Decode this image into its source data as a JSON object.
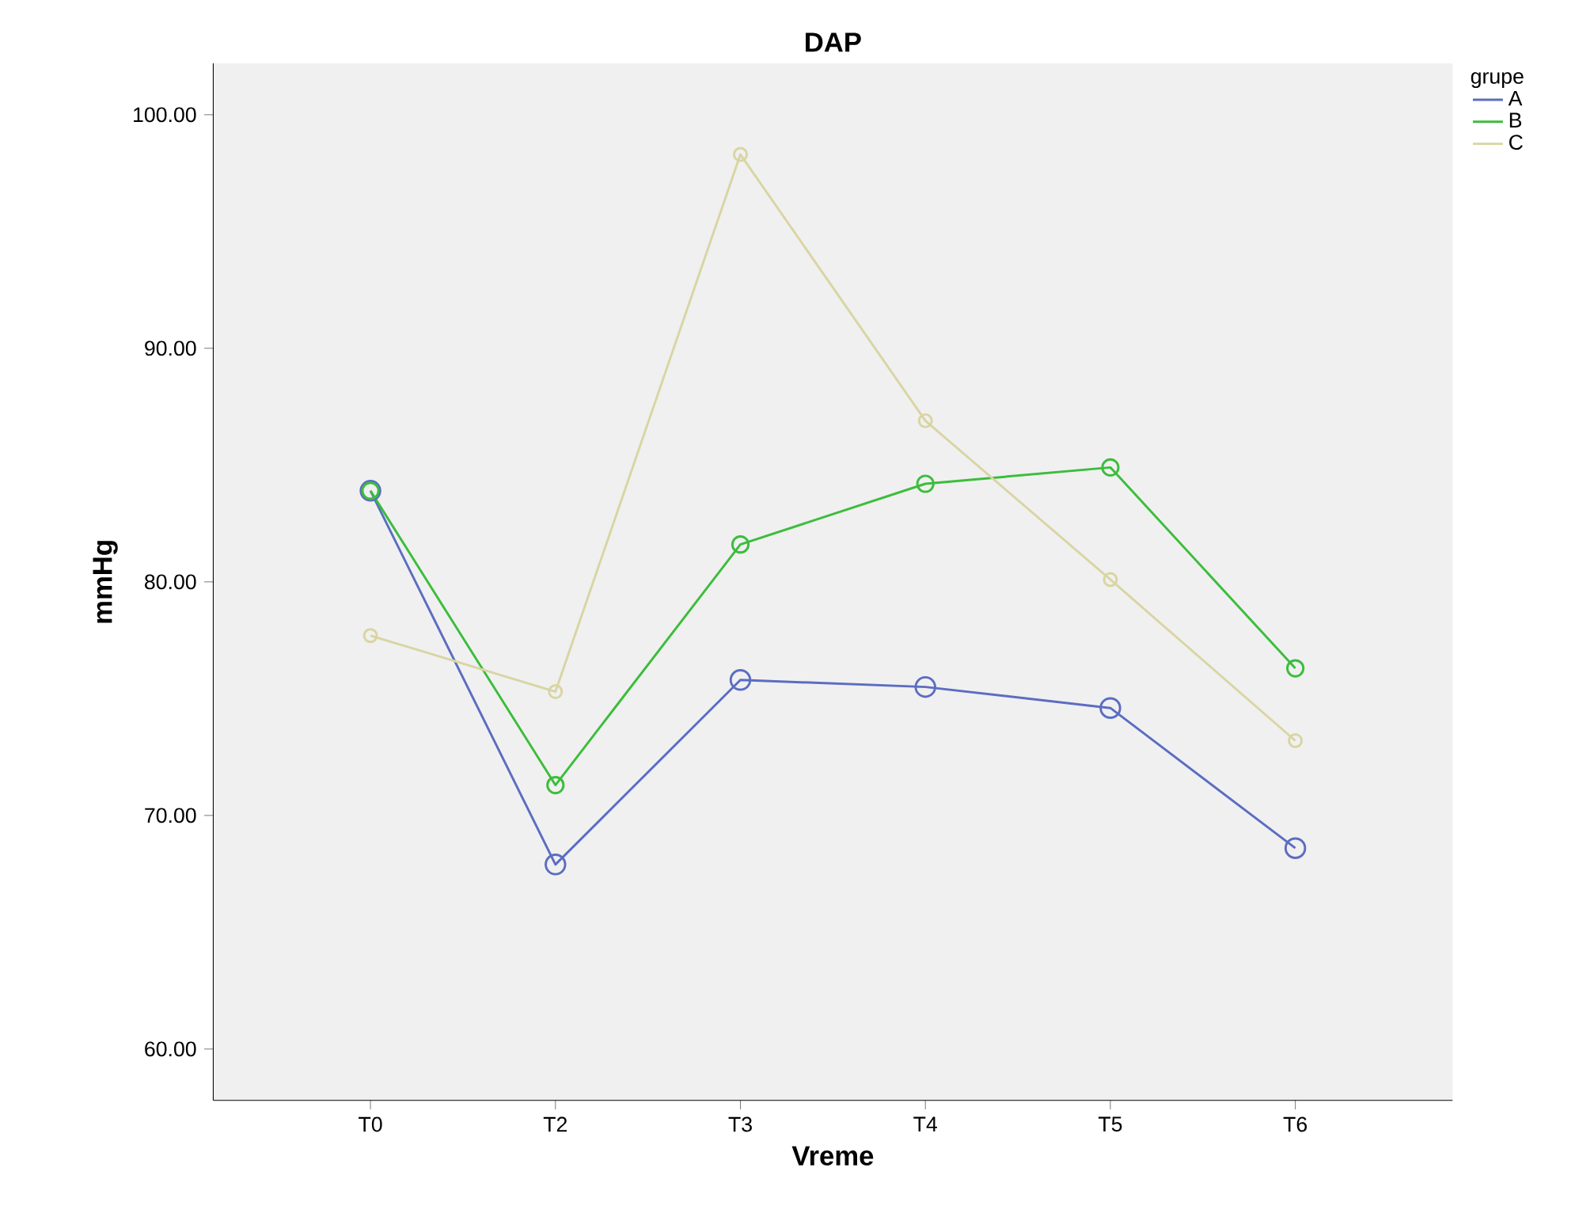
{
  "chart_data": {
    "type": "line",
    "title": "DAP",
    "xlabel": "Vreme",
    "ylabel": "mmHg",
    "legend_title": "grupe",
    "categories": [
      "T0",
      "T2",
      "T3",
      "T4",
      "T5",
      "T6"
    ],
    "series": [
      {
        "name": "A",
        "color": "#5b6dc2",
        "values": [
          83.9,
          67.9,
          75.8,
          75.5,
          74.6,
          68.6
        ]
      },
      {
        "name": "B",
        "color": "#3cbd3c",
        "values": [
          83.9,
          71.3,
          81.6,
          84.2,
          84.9,
          76.3
        ]
      },
      {
        "name": "C",
        "color": "#d9d5a3",
        "values": [
          77.7,
          75.3,
          98.3,
          86.9,
          80.1,
          73.2
        ]
      }
    ],
    "ylim": [
      57.8,
      102.2
    ],
    "yticks": [
      {
        "value": 60,
        "label": "60.00"
      },
      {
        "value": 70,
        "label": "70.00"
      },
      {
        "value": 80,
        "label": "80.00"
      },
      {
        "value": 90,
        "label": "90.00"
      },
      {
        "value": 100,
        "label": "100.00"
      }
    ],
    "grid": false,
    "legend": "top right",
    "marker": "circle",
    "line_style": "solid"
  }
}
